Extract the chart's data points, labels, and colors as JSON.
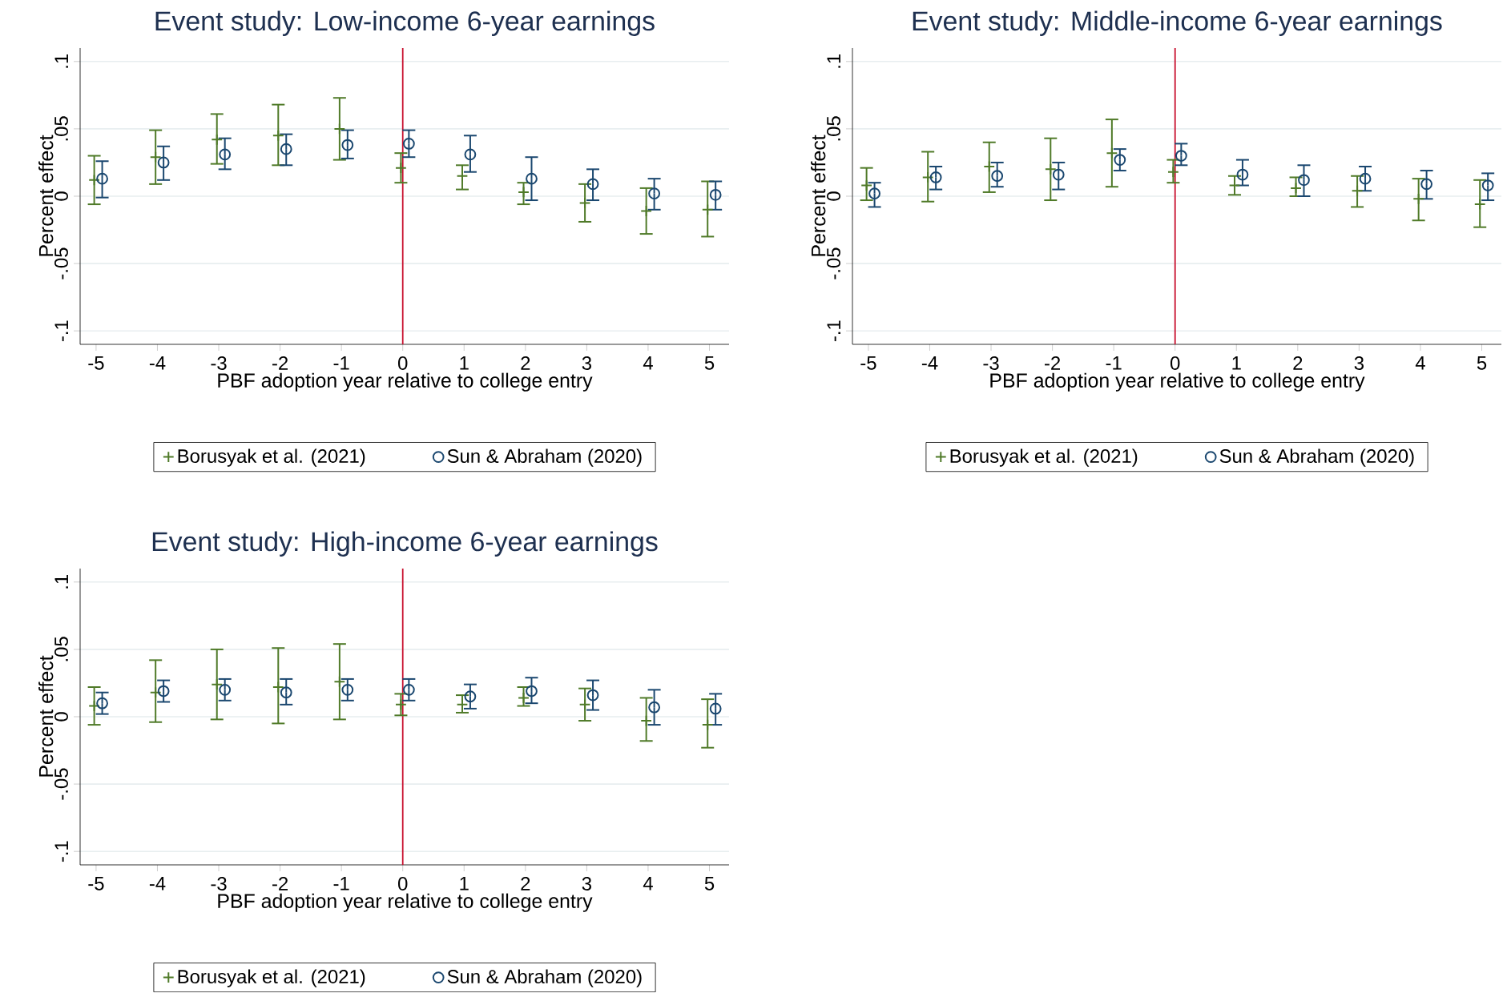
{
  "chart_data": [
    {
      "type": "scatter",
      "title": "Event study: Low-income 6-year earnings",
      "xlabel": "PBF adoption year relative to college entry",
      "ylabel": "Percent effect",
      "xlim": [
        -5.26,
        5.32
      ],
      "ylim": [
        -0.11,
        0.11
      ],
      "xticks": [
        -5,
        -4,
        -3,
        -2,
        -1,
        0,
        1,
        2,
        3,
        4,
        5
      ],
      "yticks": [
        {
          "value": -0.1,
          "label": "-.1"
        },
        {
          "value": -0.05,
          "label": "-.05"
        },
        {
          "value": 0,
          "label": "0"
        },
        {
          "value": 0.05,
          "label": ".05"
        },
        {
          "value": 0.1,
          "label": ".1"
        }
      ],
      "grid": "y",
      "legend": "bottom",
      "ref_lines": [
        {
          "axis": "x",
          "value": 0,
          "color": "#c8102e"
        }
      ],
      "series": [
        {
          "name": "Borusyak et al. (2021)",
          "color": "#4f7a28",
          "marker": "cross",
          "x": [
            -5.03,
            -4.03,
            -3.03,
            -2.03,
            -1.03,
            -0.03,
            0.97,
            1.97,
            2.97,
            3.97,
            4.97
          ],
          "values": [
            0.012,
            0.029,
            0.042,
            0.045,
            0.05,
            0.021,
            0.015,
            0.003,
            -0.005,
            -0.011,
            -0.01
          ],
          "errors": [
            [
              -0.006,
              0.03
            ],
            [
              0.009,
              0.049
            ],
            [
              0.024,
              0.061
            ],
            [
              0.023,
              0.068
            ],
            [
              0.027,
              0.073
            ],
            [
              0.01,
              0.032
            ],
            [
              0.005,
              0.023
            ],
            [
              -0.006,
              0.01
            ],
            [
              -0.019,
              0.009
            ],
            [
              -0.028,
              0.006
            ],
            [
              -0.03,
              0.011
            ]
          ]
        },
        {
          "name": "Sun & Abraham (2020)",
          "color": "#1a476f",
          "marker": "circle",
          "x": [
            -4.9,
            -3.9,
            -2.9,
            -1.9,
            -0.9,
            0.1,
            1.1,
            2.1,
            3.1,
            4.1,
            5.1
          ],
          "values": [
            0.013,
            0.025,
            0.031,
            0.035,
            0.038,
            0.039,
            0.031,
            0.013,
            0.009,
            0.002,
            0.001
          ],
          "errors": [
            [
              -0.001,
              0.026
            ],
            [
              0.012,
              0.037
            ],
            [
              0.02,
              0.043
            ],
            [
              0.023,
              0.046
            ],
            [
              0.028,
              0.049
            ],
            [
              0.029,
              0.049
            ],
            [
              0.018,
              0.045
            ],
            [
              -0.003,
              0.029
            ],
            [
              -0.003,
              0.02
            ],
            [
              -0.01,
              0.013
            ],
            [
              -0.01,
              0.011
            ]
          ]
        }
      ]
    },
    {
      "type": "scatter",
      "title": "Event study: Middle-income 6-year earnings",
      "xlabel": "PBF adoption year relative to college entry",
      "ylabel": "Percent effect",
      "xlim": [
        -5.26,
        5.32
      ],
      "ylim": [
        -0.11,
        0.11
      ],
      "xticks": [
        -5,
        -4,
        -3,
        -2,
        -1,
        0,
        1,
        2,
        3,
        4,
        5
      ],
      "yticks": [
        {
          "value": -0.1,
          "label": "-.1"
        },
        {
          "value": -0.05,
          "label": "-.05"
        },
        {
          "value": 0,
          "label": "0"
        },
        {
          "value": 0.05,
          "label": ".05"
        },
        {
          "value": 0.1,
          "label": ".1"
        }
      ],
      "grid": "y",
      "legend": "bottom",
      "ref_lines": [
        {
          "axis": "x",
          "value": 0,
          "color": "#c8102e"
        }
      ],
      "series": [
        {
          "name": "Borusyak et al. (2021)",
          "color": "#4f7a28",
          "marker": "cross",
          "x": [
            -5.03,
            -4.03,
            -3.03,
            -2.03,
            -1.03,
            -0.03,
            0.97,
            1.97,
            2.97,
            3.97,
            4.97
          ],
          "values": [
            0.008,
            0.014,
            0.022,
            0.02,
            0.032,
            0.018,
            0.008,
            0.006,
            0.004,
            -0.002,
            -0.006
          ],
          "errors": [
            [
              -0.003,
              0.021
            ],
            [
              -0.004,
              0.033
            ],
            [
              0.003,
              0.04
            ],
            [
              -0.003,
              0.043
            ],
            [
              0.007,
              0.057
            ],
            [
              0.01,
              0.027
            ],
            [
              0.001,
              0.015
            ],
            [
              0.0,
              0.014
            ],
            [
              -0.008,
              0.015
            ],
            [
              -0.018,
              0.013
            ],
            [
              -0.023,
              0.012
            ]
          ]
        },
        {
          "name": "Sun & Abraham (2020)",
          "color": "#1a476f",
          "marker": "circle",
          "x": [
            -4.9,
            -3.9,
            -2.9,
            -1.9,
            -0.9,
            0.1,
            1.1,
            2.1,
            3.1,
            4.1,
            5.1
          ],
          "values": [
            0.002,
            0.014,
            0.015,
            0.016,
            0.027,
            0.03,
            0.016,
            0.012,
            0.013,
            0.009,
            0.008
          ],
          "errors": [
            [
              -0.008,
              0.01
            ],
            [
              0.005,
              0.022
            ],
            [
              0.007,
              0.025
            ],
            [
              0.005,
              0.025
            ],
            [
              0.019,
              0.035
            ],
            [
              0.023,
              0.039
            ],
            [
              0.008,
              0.027
            ],
            [
              0.0,
              0.023
            ],
            [
              0.004,
              0.022
            ],
            [
              -0.002,
              0.019
            ],
            [
              -0.003,
              0.017
            ]
          ]
        }
      ]
    },
    {
      "type": "scatter",
      "title": "Event study: High-income 6-year earnings",
      "xlabel": "PBF adoption year relative to college entry",
      "ylabel": "Percent effect",
      "xlim": [
        -5.26,
        5.32
      ],
      "ylim": [
        -0.11,
        0.11
      ],
      "xticks": [
        -5,
        -4,
        -3,
        -2,
        -1,
        0,
        1,
        2,
        3,
        4,
        5
      ],
      "yticks": [
        {
          "value": -0.1,
          "label": "-.1"
        },
        {
          "value": -0.05,
          "label": "-.05"
        },
        {
          "value": 0,
          "label": "0"
        },
        {
          "value": 0.05,
          "label": ".05"
        },
        {
          "value": 0.1,
          "label": ".1"
        }
      ],
      "grid": "y",
      "legend": "bottom",
      "ref_lines": [
        {
          "axis": "x",
          "value": 0,
          "color": "#c8102e"
        }
      ],
      "series": [
        {
          "name": "Borusyak et al. (2021)",
          "color": "#4f7a28",
          "marker": "cross",
          "x": [
            -5.03,
            -4.03,
            -3.03,
            -2.03,
            -1.03,
            -0.03,
            0.97,
            1.97,
            2.97,
            3.97,
            4.97
          ],
          "values": [
            0.008,
            0.018,
            0.024,
            0.022,
            0.026,
            0.009,
            0.009,
            0.014,
            0.009,
            -0.003,
            -0.006
          ],
          "errors": [
            [
              -0.006,
              0.022
            ],
            [
              -0.004,
              0.042
            ],
            [
              -0.002,
              0.05
            ],
            [
              -0.005,
              0.051
            ],
            [
              -0.002,
              0.054
            ],
            [
              0.001,
              0.017
            ],
            [
              0.003,
              0.016
            ],
            [
              0.008,
              0.022
            ],
            [
              -0.003,
              0.021
            ],
            [
              -0.018,
              0.014
            ],
            [
              -0.023,
              0.013
            ]
          ]
        },
        {
          "name": "Sun & Abraham (2020)",
          "color": "#1a476f",
          "marker": "circle",
          "x": [
            -4.9,
            -3.9,
            -2.9,
            -1.9,
            -0.9,
            0.1,
            1.1,
            2.1,
            3.1,
            4.1,
            5.1
          ],
          "values": [
            0.01,
            0.019,
            0.02,
            0.018,
            0.02,
            0.02,
            0.015,
            0.019,
            0.016,
            0.007,
            0.006
          ],
          "errors": [
            [
              0.002,
              0.018
            ],
            [
              0.011,
              0.027
            ],
            [
              0.012,
              0.028
            ],
            [
              0.009,
              0.028
            ],
            [
              0.012,
              0.028
            ],
            [
              0.012,
              0.028
            ],
            [
              0.006,
              0.024
            ],
            [
              0.01,
              0.029
            ],
            [
              0.005,
              0.027
            ],
            [
              -0.006,
              0.02
            ],
            [
              -0.006,
              0.017
            ]
          ]
        }
      ]
    }
  ]
}
